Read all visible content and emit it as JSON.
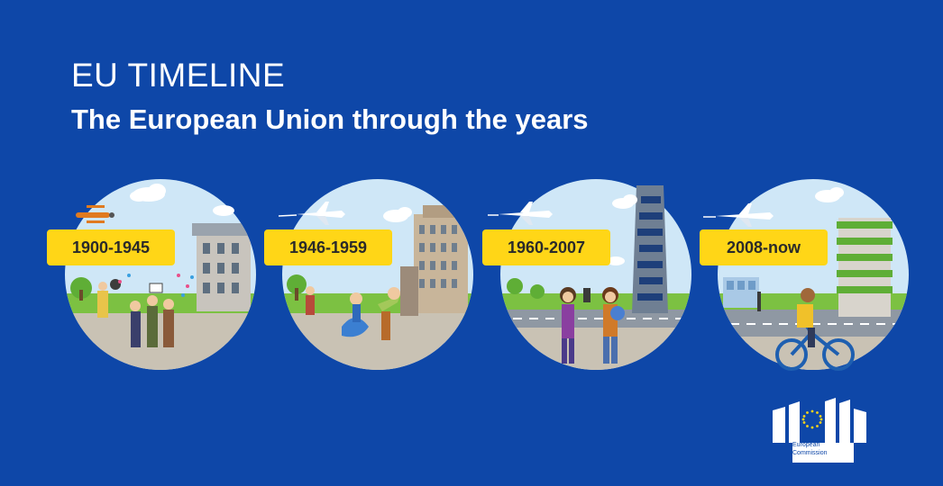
{
  "header": {
    "supertitle": "EU TIMELINE",
    "title": "The European Union through the years"
  },
  "eras": [
    {
      "label": "1900-1945"
    },
    {
      "label": "1946-1959"
    },
    {
      "label": "1960-2007"
    },
    {
      "label": "2008-now"
    }
  ],
  "logo": {
    "line1": "European",
    "line2": "Commission"
  },
  "colors": {
    "background": "#0e47a8",
    "label_yellow": "#ffd617",
    "sky": "#cfe7f7",
    "grass": "#7cc142",
    "road": "#8f98a3",
    "pavement": "#c9c2b4"
  }
}
